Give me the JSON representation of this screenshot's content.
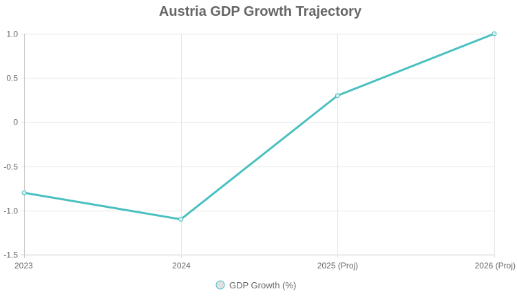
{
  "chart_data": {
    "type": "line",
    "title": "Austria GDP Growth Trajectory",
    "categories": [
      "2023",
      "2024",
      "2025 (Proj)",
      "2026 (Proj)"
    ],
    "series": [
      {
        "name": "GDP Growth (%)",
        "values": [
          -0.8,
          -1.1,
          0.3,
          1.0
        ],
        "color": "#4bc0c0"
      }
    ],
    "yticks": [
      "1.0",
      "0.5",
      "0",
      "-0.5",
      "-1.0",
      "-1.5"
    ],
    "ytick_values": [
      1.0,
      0.5,
      0,
      -0.5,
      -1.0,
      -1.5
    ],
    "ylim": [
      -1.5,
      1.0
    ],
    "xlabel": "",
    "ylabel": "",
    "grid": true,
    "legend": "bottom"
  }
}
